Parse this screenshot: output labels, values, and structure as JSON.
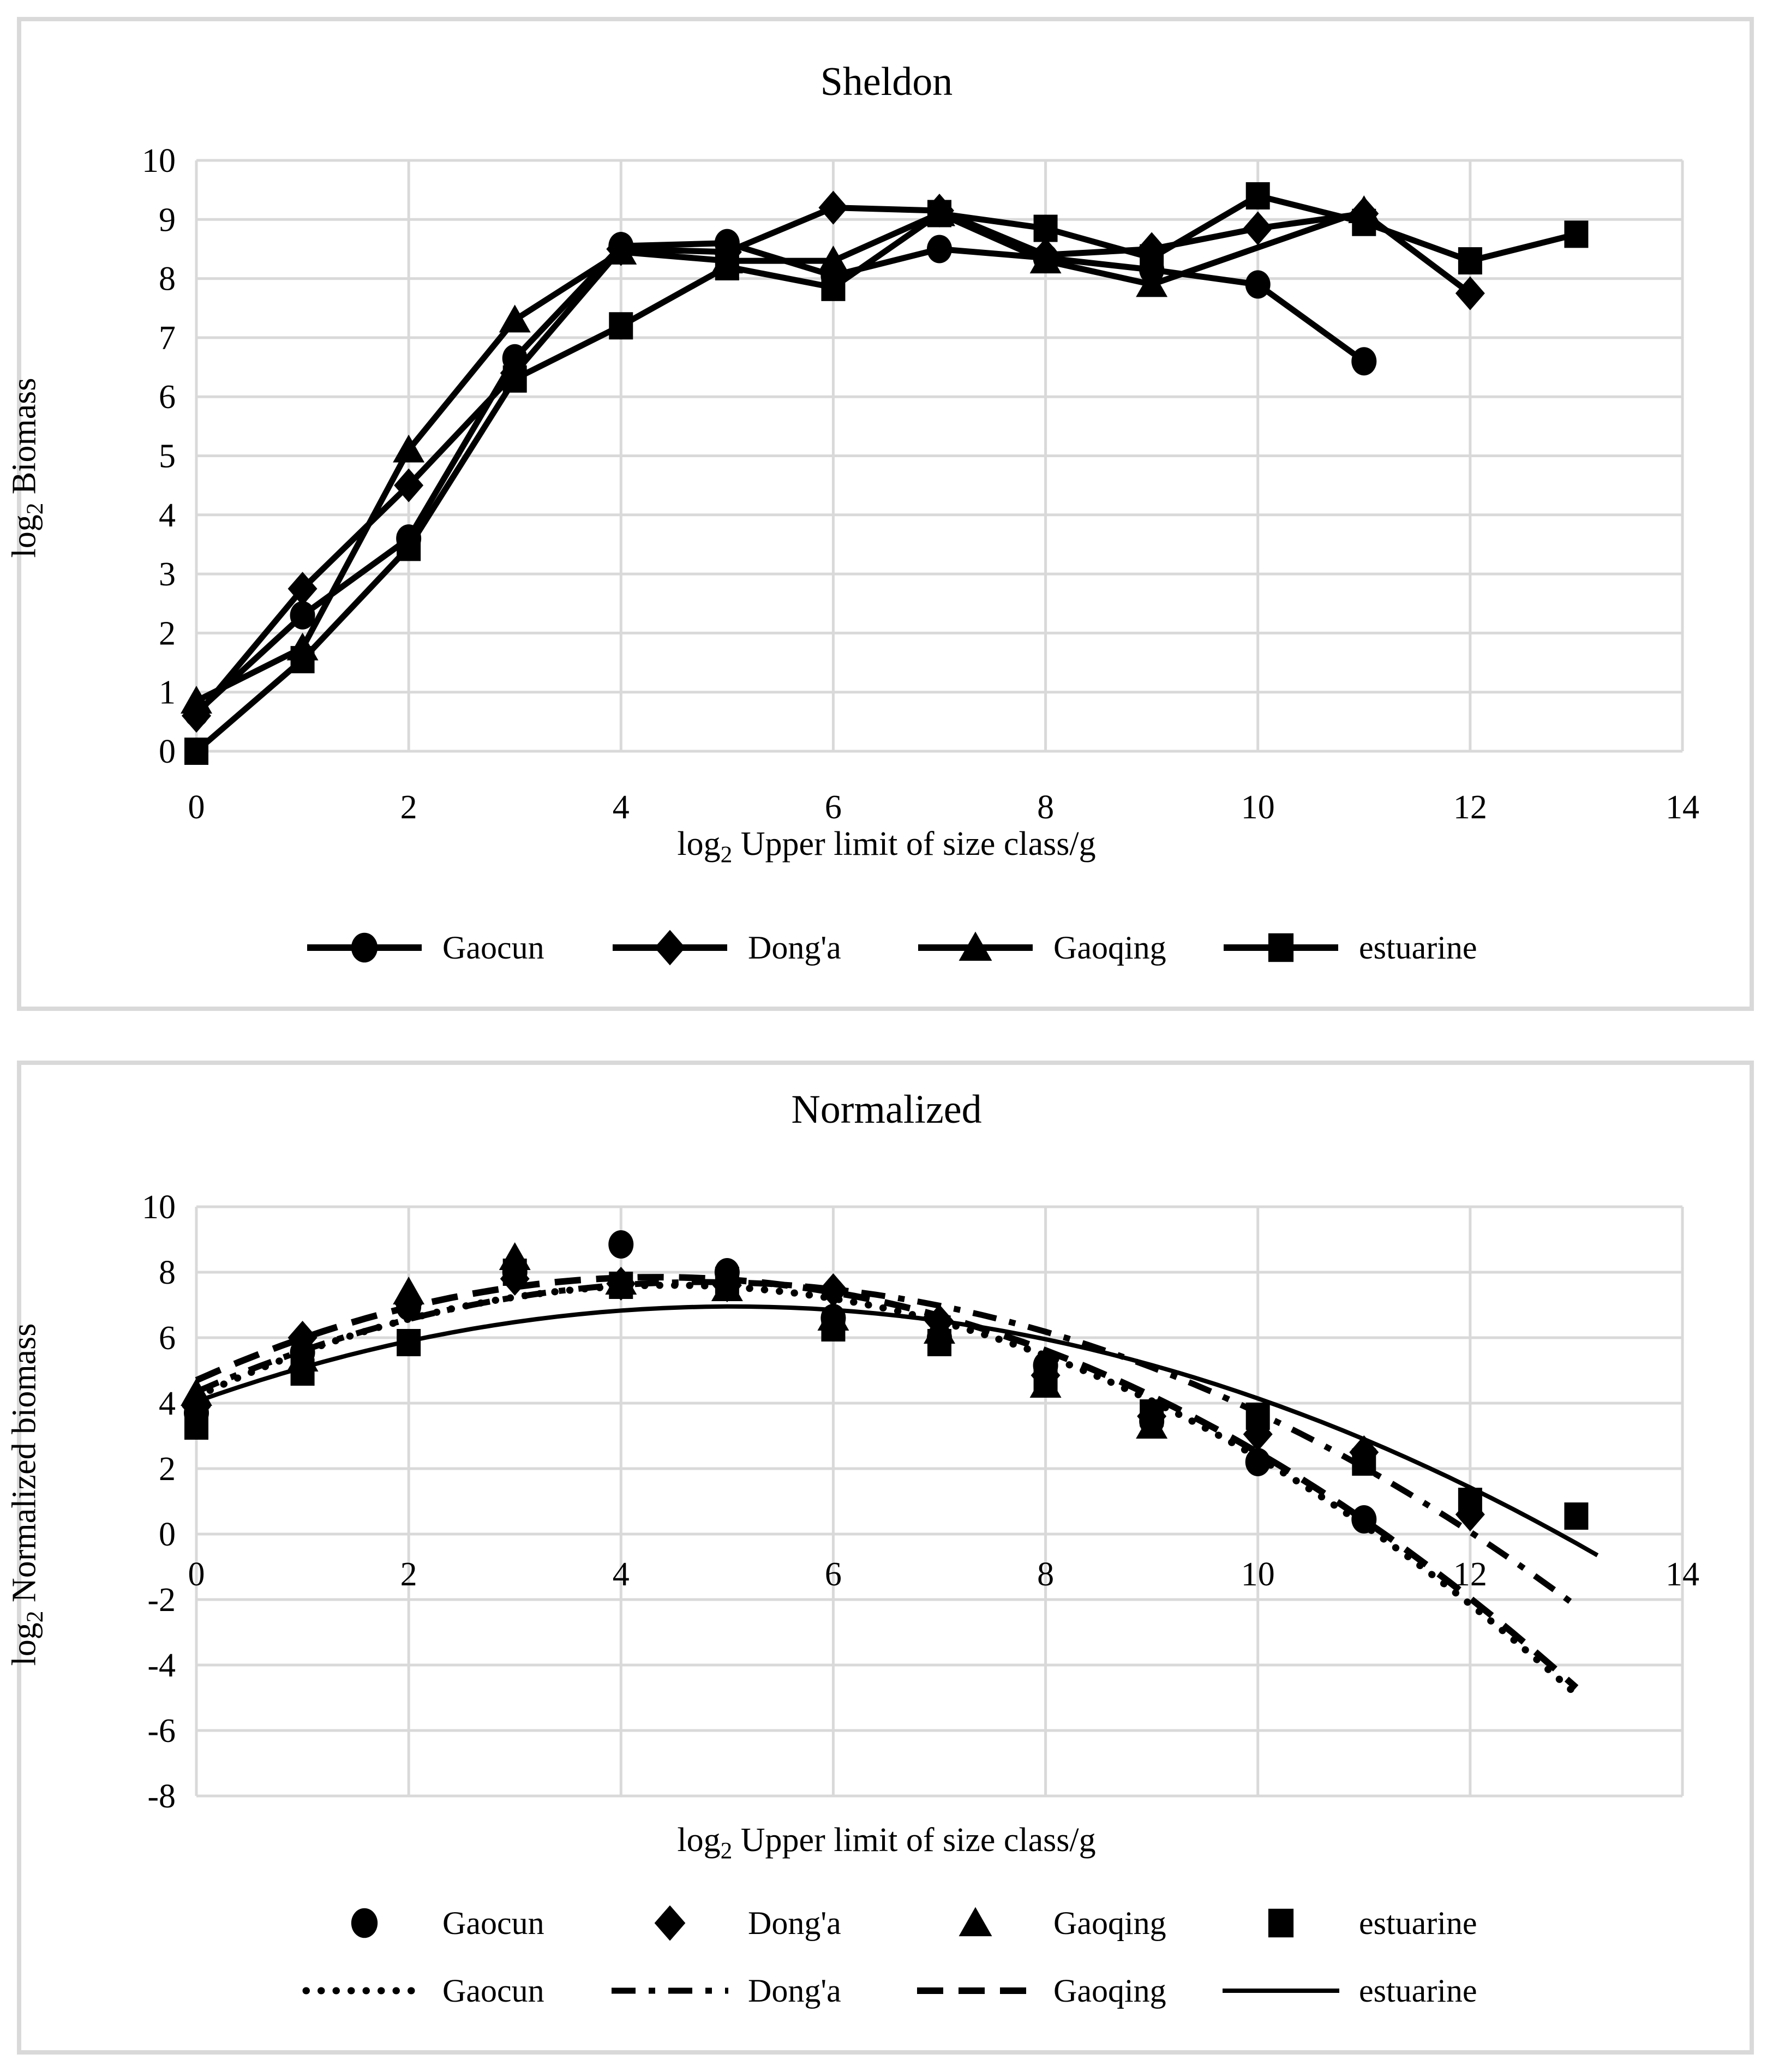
{
  "page": {
    "background_color": "#ffffff",
    "panel_border_color": "#d9d9d9",
    "grid_color": "#d9d9d9",
    "series_color": "#000000"
  },
  "chart_data": [
    {
      "type": "line",
      "title": "Sheldon",
      "xlabel_log": "log",
      "xlabel_sub": "2",
      "xlabel_rest": " Upper limit of size class/g",
      "ylabel_log": "log",
      "ylabel_sub": "2",
      "ylabel_rest": " Biomass",
      "xlim": [
        0,
        14
      ],
      "ylim": [
        0,
        10
      ],
      "x_ticks": [
        0,
        2,
        4,
        6,
        8,
        10,
        12,
        14
      ],
      "y_ticks": [
        0,
        1,
        2,
        3,
        4,
        5,
        6,
        7,
        8,
        9,
        10
      ],
      "grid": true,
      "legend_position": "bottom",
      "series": [
        {
          "name": "Gaocun",
          "marker": "circle",
          "x": [
            0,
            1,
            2,
            3,
            4,
            5,
            6,
            7,
            8,
            9,
            10,
            11
          ],
          "y": [
            0.65,
            2.3,
            3.6,
            6.65,
            8.55,
            8.6,
            8.05,
            8.5,
            8.35,
            8.15,
            7.9,
            6.6
          ]
        },
        {
          "name": "Dong'a",
          "marker": "diamond",
          "x": [
            0,
            1,
            2,
            3,
            4,
            5,
            6,
            7,
            8,
            9,
            10,
            11,
            12
          ],
          "y": [
            0.6,
            2.75,
            4.5,
            6.4,
            8.5,
            8.45,
            9.2,
            9.15,
            8.4,
            8.5,
            8.85,
            9.1,
            7.75
          ]
        },
        {
          "name": "Gaoqing",
          "marker": "triangle",
          "x": [
            0,
            1,
            2,
            3,
            4,
            5,
            6,
            7,
            8,
            9,
            11
          ],
          "y": [
            0.85,
            1.75,
            5.1,
            7.3,
            8.45,
            8.3,
            8.3,
            9.1,
            8.3,
            7.9,
            9.15
          ]
        },
        {
          "name": "estuarine",
          "marker": "square",
          "x": [
            0,
            1,
            2,
            3,
            4,
            5,
            6,
            7,
            8,
            9,
            10,
            11,
            12,
            13
          ],
          "y": [
            0.0,
            1.55,
            3.45,
            6.3,
            7.2,
            8.2,
            7.85,
            9.1,
            8.85,
            8.35,
            9.4,
            8.95,
            8.3,
            8.75
          ]
        }
      ]
    },
    {
      "type": "scatter",
      "title": "Normalized",
      "xlabel_log": "log",
      "xlabel_sub": "2",
      "xlabel_rest": " Upper limit of size class/g",
      "ylabel_log": "log",
      "ylabel_sub": "2",
      "ylabel_rest": " Normalized biomass",
      "xlim": [
        0,
        14
      ],
      "ylim": [
        -8,
        10
      ],
      "x_ticks": [
        0,
        2,
        4,
        6,
        8,
        10,
        12,
        14
      ],
      "y_ticks": [
        -8,
        -6,
        -4,
        -2,
        0,
        2,
        4,
        6,
        8,
        10
      ],
      "grid": true,
      "legend_position": "bottom",
      "series": [
        {
          "name": "Gaocun",
          "marker": "circle",
          "x": [
            0,
            1,
            2,
            3,
            4,
            5,
            6,
            7,
            8,
            9,
            10,
            11
          ],
          "y": [
            3.7,
            5.55,
            6.95,
            8.0,
            8.85,
            8.0,
            6.6,
            6.0,
            5.15,
            3.45,
            2.2,
            0.45
          ]
        },
        {
          "name": "Dong'a",
          "marker": "diamond",
          "x": [
            0,
            1,
            2,
            3,
            4,
            5,
            6,
            7,
            8,
            9,
            10,
            11,
            12
          ],
          "y": [
            3.9,
            6.0,
            7.05,
            7.8,
            7.65,
            7.6,
            7.45,
            6.5,
            4.85,
            3.6,
            3.05,
            2.5,
            0.6
          ]
        },
        {
          "name": "Gaoqing",
          "marker": "triangle",
          "x": [
            0,
            1,
            2,
            3,
            4,
            5,
            6,
            7,
            8,
            9
          ],
          "y": [
            4.3,
            5.35,
            7.4,
            8.45,
            7.7,
            7.5,
            6.6,
            6.2,
            4.55,
            3.3
          ]
        },
        {
          "name": "estuarine",
          "marker": "square",
          "x": [
            0,
            1,
            2,
            3,
            4,
            5,
            6,
            7,
            8,
            9,
            10,
            11,
            12,
            13
          ],
          "y": [
            3.3,
            4.95,
            5.85,
            8.0,
            7.6,
            7.75,
            6.3,
            5.85,
            4.7,
            3.7,
            3.6,
            2.2,
            1.0,
            0.55
          ]
        }
      ],
      "trendlines": [
        {
          "name": "Gaocun",
          "style": "dotted",
          "poly": {
            "a": -0.1713,
            "b": 1.527,
            "c": 4.2
          },
          "x_start": 0,
          "x_end": 13.0
        },
        {
          "name": "Dong'a",
          "style": "dashdot",
          "poly": {
            "a": -0.1465,
            "b": 1.401,
            "c": 4.35
          },
          "x_start": 0,
          "x_end": 13.1
        },
        {
          "name": "Gaoqing",
          "style": "dashed",
          "poly": {
            "a": -0.1672,
            "b": 1.4513,
            "c": 4.7
          },
          "x_start": 0,
          "x_end": 13.0
        },
        {
          "name": "estuarine",
          "style": "solid",
          "poly": {
            "a": -0.1142,
            "b": 1.1515,
            "c": 4.05
          },
          "x_start": 0,
          "x_end": 13.3
        }
      ]
    }
  ]
}
